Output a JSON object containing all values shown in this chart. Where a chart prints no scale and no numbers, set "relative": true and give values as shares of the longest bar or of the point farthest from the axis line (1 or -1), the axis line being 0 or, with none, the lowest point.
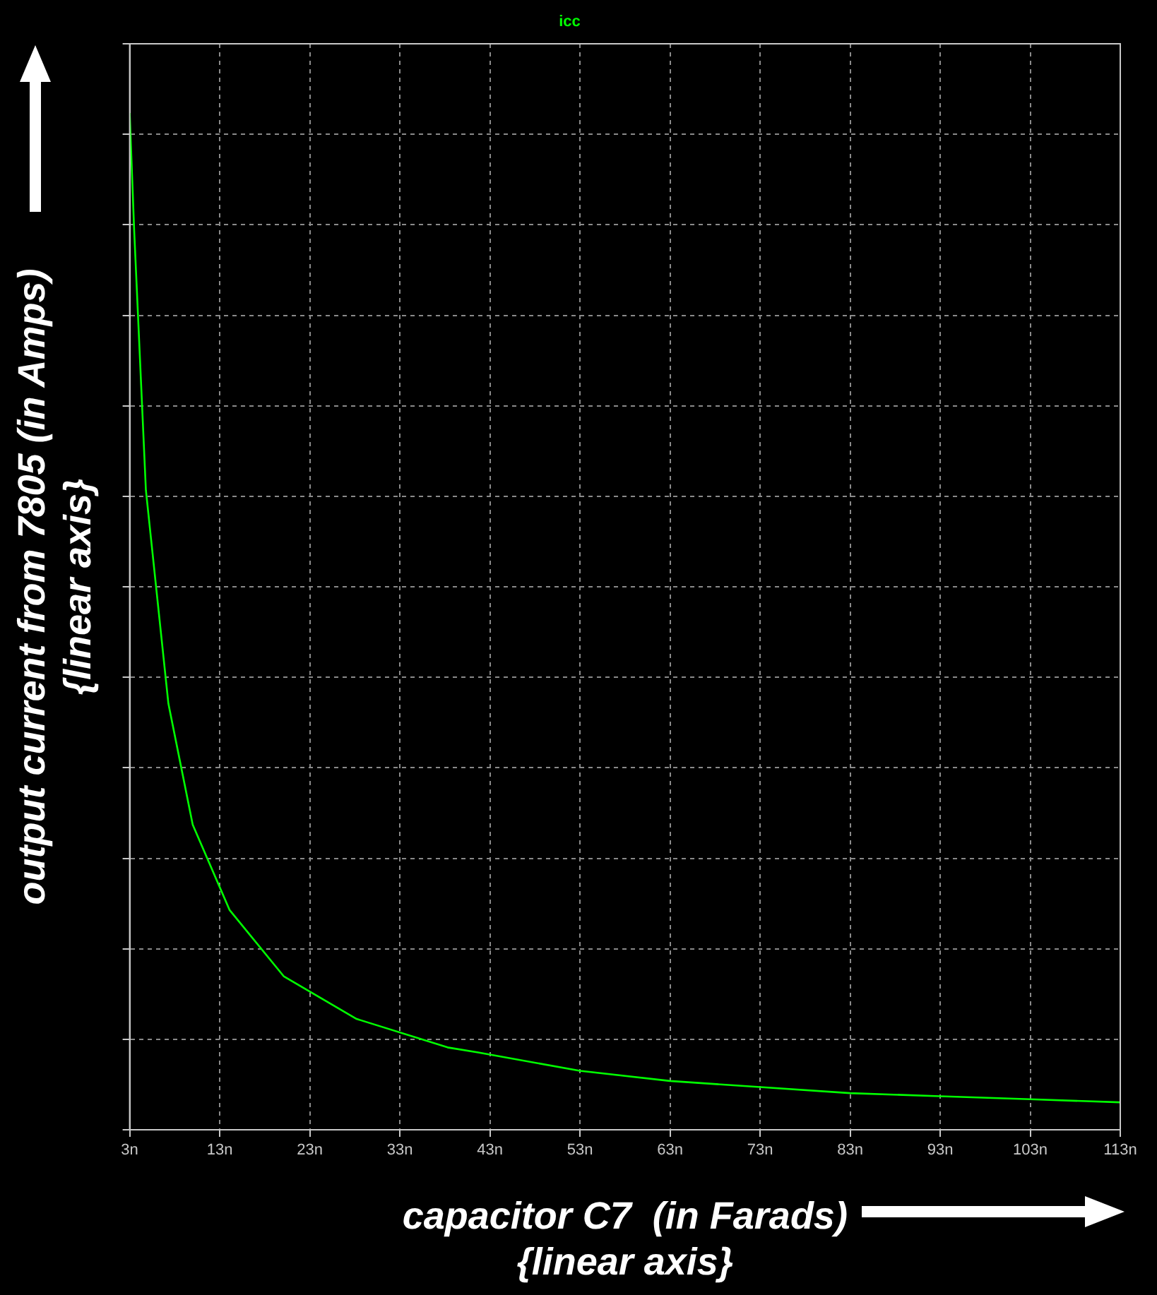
{
  "chart_data": {
    "type": "line",
    "relative": true,
    "xlabel": [
      "capacitor C7  (in Farads)",
      "{linear axis}"
    ],
    "ylabel": [
      "output current from 7805 (in Amps)",
      "{linear axis}"
    ],
    "xlim": [
      3,
      113
    ],
    "xticks": [
      {
        "value": 3,
        "label": "3n"
      },
      {
        "value": 13,
        "label": "13n"
      },
      {
        "value": 23,
        "label": "23n"
      },
      {
        "value": 33,
        "label": "33n"
      },
      {
        "value": 43,
        "label": "43n"
      },
      {
        "value": 53,
        "label": "53n"
      },
      {
        "value": 63,
        "label": "63n"
      },
      {
        "value": 73,
        "label": "73n"
      },
      {
        "value": 83,
        "label": "83n"
      },
      {
        "value": 93,
        "label": "93n"
      },
      {
        "value": 103,
        "label": "103n"
      },
      {
        "value": 113,
        "label": "113n"
      }
    ],
    "grid": true,
    "legend": "top",
    "marker": "none",
    "line_style": "solid",
    "tick_labels": "x",
    "series": [
      {
        "name": "icc",
        "color": "#00ff00",
        "x": [
          3,
          3.5,
          4.8,
          7.3,
          10,
          14.1,
          20.1,
          28.2,
          38.3,
          41.7,
          53,
          63,
          73,
          83,
          93,
          103,
          113
        ],
        "values": [
          1.0,
          0.884,
          0.629,
          0.419,
          0.3,
          0.216,
          0.151,
          0.109,
          0.081,
          0.076,
          0.058,
          0.048,
          0.042,
          0.036,
          0.033,
          0.03,
          0.027
        ]
      }
    ]
  }
}
